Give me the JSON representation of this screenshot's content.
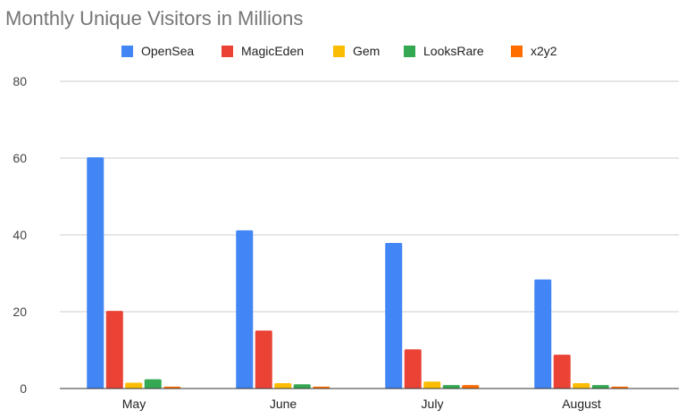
{
  "chart_data": {
    "type": "bar",
    "title": "Monthly Unique Visitors in Millions",
    "xlabel": "",
    "ylabel": "",
    "ylim": [
      0,
      80
    ],
    "yticks": [
      0,
      20,
      40,
      60,
      80
    ],
    "grid": true,
    "legend_position": "top",
    "categories": [
      "May",
      "June",
      "July",
      "August"
    ],
    "series": [
      {
        "name": "OpenSea",
        "color": "#4285f4",
        "values": [
          60.2,
          41.2,
          37.9,
          28.4
        ]
      },
      {
        "name": "MagicEden",
        "color": "#ea4335",
        "values": [
          20.2,
          15.1,
          10.2,
          8.8
        ]
      },
      {
        "name": "Gem",
        "color": "#fbbc04",
        "values": [
          1.5,
          1.4,
          1.8,
          1.4
        ]
      },
      {
        "name": "LooksRare",
        "color": "#34a853",
        "values": [
          2.4,
          1.1,
          0.9,
          0.9
        ]
      },
      {
        "name": "x2y2",
        "color": "#ff6d01",
        "values": [
          0.5,
          0.5,
          0.9,
          0.5
        ]
      }
    ]
  }
}
